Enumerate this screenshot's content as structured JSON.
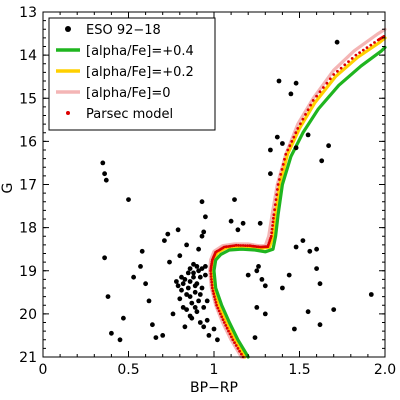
{
  "chart_data": {
    "type": "scatter",
    "xlabel": "BP−RP",
    "ylabel": "G",
    "xlim": [
      0,
      2.0
    ],
    "ylim": [
      21,
      13
    ],
    "y_inverted": true,
    "x_ticks": [
      0,
      0.5,
      1.0,
      1.5,
      2.0
    ],
    "x_tick_labels": [
      "0",
      "0.5",
      "1",
      "1.5",
      "2.0"
    ],
    "y_ticks": [
      13,
      14,
      15,
      16,
      17,
      18,
      19,
      20,
      21
    ],
    "y_tick_labels": [
      "13",
      "14",
      "15",
      "16",
      "17",
      "18",
      "19",
      "20",
      "21"
    ],
    "legend_position": "top-left",
    "legend": [
      {
        "label": "ESO 92−18",
        "marker": "dot",
        "color": "#000000"
      },
      {
        "label": "[alpha/Fe]=+0.4",
        "marker": "line",
        "color": "#1fb51f"
      },
      {
        "label": "[alpha/Fe]=+0.2",
        "marker": "line",
        "color": "#ffd000"
      },
      {
        "label": "[alpha/Fe]=0",
        "marker": "line",
        "color": "#f4b5b5"
      },
      {
        "label": "Parsec model",
        "marker": "smalldot",
        "color": "#dd0000"
      }
    ],
    "series": [
      {
        "name": "[alpha/Fe]=0",
        "kind": "line",
        "color": "#f4b5b5",
        "points": [
          [
            1.16,
            21.0
          ],
          [
            1.1,
            20.6
          ],
          [
            1.05,
            20.2
          ],
          [
            1.01,
            19.8
          ],
          [
            0.985,
            19.4
          ],
          [
            0.975,
            19.0
          ],
          [
            0.98,
            18.75
          ],
          [
            1.0,
            18.55
          ],
          [
            1.05,
            18.42
          ],
          [
            1.12,
            18.38
          ],
          [
            1.2,
            18.38
          ],
          [
            1.26,
            18.42
          ],
          [
            1.3,
            18.42
          ],
          [
            1.32,
            18.2
          ],
          [
            1.34,
            17.7
          ],
          [
            1.37,
            17.0
          ],
          [
            1.42,
            16.3
          ],
          [
            1.49,
            15.6
          ],
          [
            1.58,
            15.0
          ],
          [
            1.7,
            14.35
          ],
          [
            1.82,
            13.9
          ],
          [
            1.96,
            13.5
          ],
          [
            2.0,
            13.4
          ]
        ]
      },
      {
        "name": "[alpha/Fe]=+0.2",
        "kind": "line",
        "color": "#ffd000",
        "points": [
          [
            1.18,
            21.0
          ],
          [
            1.12,
            20.6
          ],
          [
            1.07,
            20.2
          ],
          [
            1.025,
            19.8
          ],
          [
            0.995,
            19.4
          ],
          [
            0.985,
            19.0
          ],
          [
            0.995,
            18.75
          ],
          [
            1.02,
            18.58
          ],
          [
            1.07,
            18.47
          ],
          [
            1.14,
            18.44
          ],
          [
            1.22,
            18.45
          ],
          [
            1.28,
            18.48
          ],
          [
            1.325,
            18.45
          ],
          [
            1.345,
            18.2
          ],
          [
            1.36,
            17.7
          ],
          [
            1.385,
            17.0
          ],
          [
            1.43,
            16.3
          ],
          [
            1.5,
            15.7
          ],
          [
            1.59,
            15.1
          ],
          [
            1.71,
            14.5
          ],
          [
            1.84,
            14.05
          ],
          [
            1.97,
            13.7
          ],
          [
            2.0,
            13.6
          ]
        ]
      },
      {
        "name": "[alpha/Fe]=+0.4",
        "kind": "line",
        "color": "#1fb51f",
        "points": [
          [
            1.2,
            21.0
          ],
          [
            1.14,
            20.6
          ],
          [
            1.09,
            20.2
          ],
          [
            1.045,
            19.8
          ],
          [
            1.01,
            19.4
          ],
          [
            1.0,
            19.0
          ],
          [
            1.01,
            18.75
          ],
          [
            1.04,
            18.62
          ],
          [
            1.09,
            18.52
          ],
          [
            1.16,
            18.5
          ],
          [
            1.24,
            18.52
          ],
          [
            1.3,
            18.56
          ],
          [
            1.345,
            18.5
          ],
          [
            1.36,
            18.2
          ],
          [
            1.375,
            17.7
          ],
          [
            1.4,
            17.0
          ],
          [
            1.45,
            16.35
          ],
          [
            1.52,
            15.8
          ],
          [
            1.61,
            15.25
          ],
          [
            1.73,
            14.7
          ],
          [
            1.86,
            14.25
          ],
          [
            1.98,
            13.9
          ],
          [
            2.0,
            13.82
          ]
        ]
      },
      {
        "name": "Parsec model",
        "kind": "dots",
        "color": "#dd0000",
        "points": [
          [
            1.17,
            21.0
          ],
          [
            1.11,
            20.6
          ],
          [
            1.06,
            20.2
          ],
          [
            1.015,
            19.8
          ],
          [
            0.99,
            19.4
          ],
          [
            0.98,
            19.0
          ],
          [
            0.99,
            18.75
          ],
          [
            1.01,
            18.57
          ],
          [
            1.06,
            18.45
          ],
          [
            1.13,
            18.41
          ],
          [
            1.21,
            18.42
          ],
          [
            1.27,
            18.45
          ],
          [
            1.315,
            18.44
          ],
          [
            1.335,
            18.2
          ],
          [
            1.35,
            17.7
          ],
          [
            1.375,
            17.0
          ],
          [
            1.42,
            16.3
          ],
          [
            1.49,
            15.7
          ],
          [
            1.58,
            15.05
          ],
          [
            1.7,
            14.45
          ],
          [
            1.83,
            14.0
          ],
          [
            1.96,
            13.65
          ],
          [
            2.0,
            13.55
          ]
        ]
      },
      {
        "name": "ESO 92−18",
        "kind": "scatter",
        "color": "#000000",
        "points": [
          [
            0.35,
            16.5
          ],
          [
            0.36,
            16.75
          ],
          [
            0.37,
            16.9
          ],
          [
            0.5,
            17.35
          ],
          [
            0.36,
            18.7
          ],
          [
            0.38,
            19.6
          ],
          [
            0.4,
            20.45
          ],
          [
            0.45,
            20.6
          ],
          [
            0.47,
            20.1
          ],
          [
            0.53,
            19.15
          ],
          [
            0.57,
            18.9
          ],
          [
            0.58,
            18.55
          ],
          [
            0.6,
            19.3
          ],
          [
            0.62,
            19.7
          ],
          [
            0.64,
            20.25
          ],
          [
            0.66,
            20.55
          ],
          [
            0.7,
            20.5
          ],
          [
            0.71,
            18.3
          ],
          [
            0.73,
            18.15
          ],
          [
            0.74,
            18.8
          ],
          [
            0.76,
            20.0
          ],
          [
            0.78,
            19.25
          ],
          [
            0.79,
            18.05
          ],
          [
            0.8,
            18.65
          ],
          [
            0.81,
            19.45
          ],
          [
            0.82,
            19.85
          ],
          [
            0.83,
            20.3
          ],
          [
            0.84,
            18.4
          ],
          [
            0.85,
            19.05
          ],
          [
            0.86,
            19.6
          ],
          [
            0.87,
            20.1
          ],
          [
            0.88,
            18.85
          ],
          [
            0.89,
            19.35
          ],
          [
            0.9,
            19.95
          ],
          [
            0.91,
            18.5
          ],
          [
            0.92,
            19.15
          ],
          [
            0.93,
            17.4
          ],
          [
            0.93,
            18.2
          ],
          [
            0.94,
            18.1
          ],
          [
            0.95,
            17.75
          ],
          [
            0.95,
            18.9
          ],
          [
            0.96,
            19.7
          ],
          [
            0.97,
            20.5
          ],
          [
            1.0,
            20.35
          ],
          [
            1.02,
            20.6
          ],
          [
            0.81,
            19.15
          ],
          [
            0.83,
            19.2
          ],
          [
            0.85,
            19.4
          ],
          [
            0.86,
            19.25
          ],
          [
            0.88,
            19.15
          ],
          [
            0.89,
            19.5
          ],
          [
            0.9,
            19.3
          ],
          [
            0.92,
            19.55
          ],
          [
            0.93,
            19.4
          ],
          [
            0.94,
            19.85
          ],
          [
            0.95,
            19.1
          ],
          [
            0.86,
            18.95
          ],
          [
            0.88,
            19.05
          ],
          [
            0.9,
            18.9
          ],
          [
            0.91,
            19.0
          ],
          [
            0.93,
            18.95
          ],
          [
            0.82,
            19.3
          ],
          [
            0.84,
            19.55
          ],
          [
            0.87,
            19.75
          ],
          [
            0.89,
            19.85
          ],
          [
            0.91,
            19.7
          ],
          [
            0.92,
            20.2
          ],
          [
            0.94,
            20.3
          ],
          [
            0.96,
            20.15
          ],
          [
            0.84,
            19.9
          ],
          [
            0.86,
            20.05
          ],
          [
            0.8,
            19.65
          ],
          [
            0.79,
            19.35
          ],
          [
            1.1,
            17.85
          ],
          [
            1.12,
            17.35
          ],
          [
            1.14,
            18.05
          ],
          [
            1.17,
            17.9
          ],
          [
            1.27,
            17.9
          ],
          [
            1.2,
            19.1
          ],
          [
            1.25,
            19.0
          ],
          [
            1.26,
            18.9
          ],
          [
            1.28,
            19.2
          ],
          [
            1.3,
            19.35
          ],
          [
            1.4,
            19.4
          ],
          [
            1.44,
            19.1
          ],
          [
            1.48,
            18.45
          ],
          [
            1.52,
            18.3
          ],
          [
            1.56,
            18.55
          ],
          [
            1.6,
            18.5
          ],
          [
            1.6,
            18.95
          ],
          [
            1.62,
            19.3
          ],
          [
            1.55,
            19.95
          ],
          [
            1.47,
            20.35
          ],
          [
            1.62,
            20.25
          ],
          [
            1.7,
            19.9
          ],
          [
            1.25,
            19.85
          ],
          [
            1.24,
            20.55
          ],
          [
            1.3,
            20.0
          ],
          [
            1.33,
            16.75
          ],
          [
            1.33,
            16.2
          ],
          [
            1.37,
            15.9
          ],
          [
            1.4,
            16.05
          ],
          [
            1.48,
            16.15
          ],
          [
            1.38,
            14.6
          ],
          [
            1.48,
            14.65
          ],
          [
            1.45,
            14.9
          ],
          [
            1.55,
            15.85
          ],
          [
            1.63,
            16.45
          ],
          [
            1.67,
            16.1
          ],
          [
            1.72,
            13.7
          ],
          [
            1.92,
            19.55
          ]
        ]
      }
    ]
  }
}
